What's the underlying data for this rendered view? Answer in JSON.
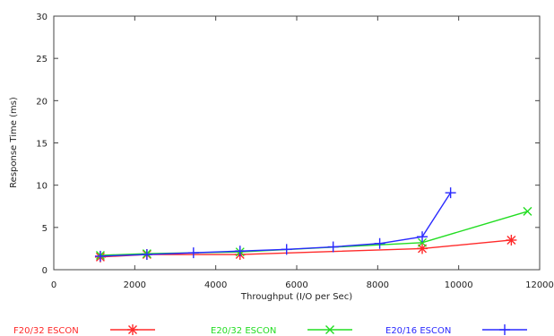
{
  "chart_data": {
    "type": "line",
    "title": "",
    "xlabel": "Throughput (I/O per Sec)",
    "ylabel": "Response Time (ms)",
    "xlim": [
      0,
      12000
    ],
    "ylim": [
      0,
      30
    ],
    "xticks": [
      0,
      2000,
      4000,
      6000,
      8000,
      10000,
      12000
    ],
    "yticks": [
      0,
      5,
      10,
      15,
      20,
      25,
      30
    ],
    "grid": false,
    "legend_position": "bottom",
    "series": [
      {
        "name": "F20/32 ESCON",
        "color": "#ff2a2a",
        "marker": "asterisk",
        "points": [
          [
            1150,
            1.5
          ],
          [
            2300,
            1.8
          ],
          [
            4600,
            1.8
          ],
          [
            9100,
            2.5
          ],
          [
            11300,
            3.5
          ]
        ]
      },
      {
        "name": "E20/32 ESCON",
        "color": "#22dd22",
        "marker": "x",
        "points": [
          [
            1150,
            1.7
          ],
          [
            2300,
            1.9
          ],
          [
            4600,
            2.1
          ],
          [
            9100,
            3.2
          ],
          [
            11700,
            6.9
          ]
        ]
      },
      {
        "name": "E20/16 ESCON",
        "color": "#2a2aff",
        "marker": "plus",
        "points": [
          [
            1150,
            1.6
          ],
          [
            2300,
            1.8
          ],
          [
            3450,
            2.0
          ],
          [
            4600,
            2.2
          ],
          [
            5750,
            2.4
          ],
          [
            6900,
            2.7
          ],
          [
            8050,
            3.1
          ],
          [
            9100,
            3.9
          ],
          [
            9800,
            9.1
          ]
        ]
      }
    ]
  }
}
